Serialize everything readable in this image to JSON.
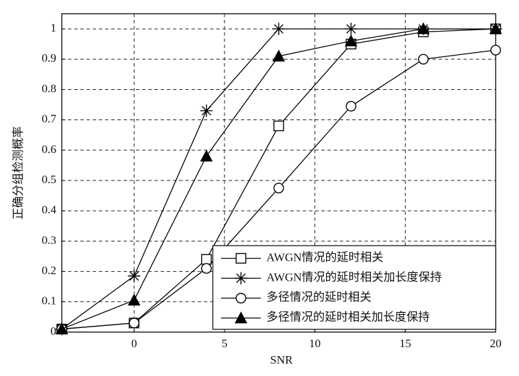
{
  "chart_data": {
    "type": "line",
    "xlabel": "SNR",
    "ylabel": "正确分组检测概率",
    "x": [
      -4,
      0,
      4,
      8,
      12,
      16,
      20
    ],
    "series": [
      {
        "name": "AWGN情况的延时相关",
        "color": "#000000",
        "marker": "square",
        "values": [
          0.01,
          0.03,
          0.24,
          0.68,
          0.95,
          0.99,
          1.0
        ]
      },
      {
        "name": "AWGN情况的延时相关加长度保持",
        "color": "#000000",
        "marker": "star",
        "values": [
          0.01,
          0.185,
          0.73,
          1.0,
          1.0,
          1.0,
          1.0
        ]
      },
      {
        "name": "多径情况的延时相关",
        "color": "#000000",
        "marker": "circle",
        "values": [
          0.01,
          0.03,
          0.21,
          0.475,
          0.745,
          0.9,
          0.93
        ]
      },
      {
        "name": "多径情况的延时相关加长度保持",
        "color": "#000000",
        "marker": "triangle",
        "values": [
          0.01,
          0.105,
          0.58,
          0.91,
          0.96,
          1.0,
          1.0
        ]
      }
    ],
    "xlim": [
      -4,
      20
    ],
    "xticks": [
      0,
      5,
      10,
      15,
      20
    ],
    "ylim": [
      0,
      1.05
    ],
    "yticks": [
      0,
      0.1,
      0.2,
      0.3,
      0.4,
      0.5,
      0.6,
      0.7,
      0.8,
      0.9,
      1
    ],
    "grid": true,
    "legend": "lower right"
  }
}
